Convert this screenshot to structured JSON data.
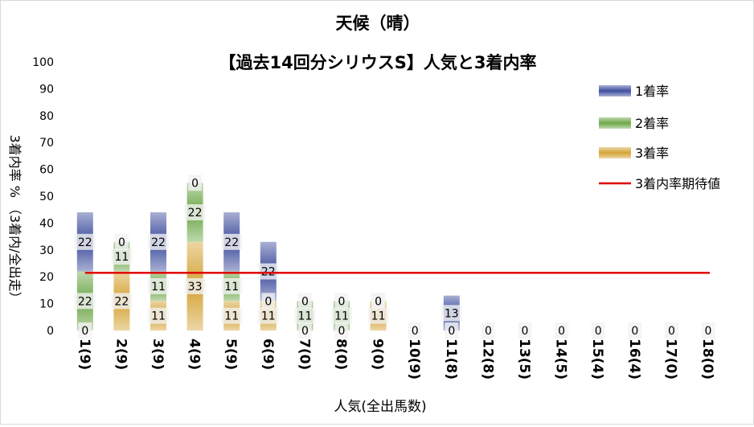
{
  "chart_data": {
    "type": "bar",
    "stacked": true,
    "title": "天候（晴）",
    "subtitle": "【過去14回分シリウスS】人気と3着内率",
    "xlabel": "人気(全出馬数)",
    "ylabel": "3着内率 %  （3着内/全出走）",
    "ylim": [
      0,
      100
    ],
    "yticks": [
      0,
      10,
      20,
      30,
      40,
      50,
      60,
      70,
      80,
      90,
      100
    ],
    "grid": false,
    "legend_position": "top-right",
    "categories": [
      "1(9)",
      "2(9)",
      "3(9)",
      "4(9)",
      "5(9)",
      "6(9)",
      "7(0)",
      "8(0)",
      "9(0)",
      "10(9)",
      "11(8)",
      "12(8)",
      "13(5)",
      "14(5)",
      "15(4)",
      "16(4)",
      "17(0)",
      "18(0)"
    ],
    "series": [
      {
        "name": "3着率",
        "color": "#d4a437",
        "values": [
          0,
          22,
          11,
          33,
          11,
          11,
          0,
          0,
          11,
          0,
          0,
          0,
          0,
          0,
          0,
          0,
          0,
          0
        ]
      },
      {
        "name": "2着率",
        "color": "#6fa84a",
        "values": [
          22,
          11,
          11,
          22,
          11,
          0,
          11,
          11,
          0,
          0,
          0,
          0,
          0,
          0,
          0,
          0,
          0,
          0
        ]
      },
      {
        "name": "1着率",
        "color": "#3f4f9e",
        "values": [
          22,
          0,
          22,
          0,
          22,
          22,
          0,
          0,
          0,
          0,
          13,
          0,
          0,
          0,
          0,
          0,
          0,
          0
        ]
      }
    ],
    "data_labels": {
      "3着率": [
        "0",
        "22",
        "11",
        "33",
        "11",
        "11",
        "0",
        "0",
        "11",
        "0",
        "0",
        "0",
        "0",
        "0",
        "0",
        "0",
        "0",
        "0"
      ],
      "2着率": [
        "22",
        "11",
        "11",
        "22",
        "11",
        "0",
        "11",
        "11",
        "0",
        "",
        "",
        "",
        "",
        "",
        "",
        "",
        "",
        ""
      ],
      "1着率": [
        "22",
        "0",
        "22",
        "0",
        "22",
        "22",
        "0",
        "0",
        "0",
        "",
        "13",
        "",
        "",
        "",
        "",
        "",
        "",
        ""
      ]
    },
    "reference_line": {
      "name": "3着内率期待値",
      "value": 21.5,
      "color": "#e00000"
    },
    "legend": [
      "1着率",
      "2着率",
      "3着率",
      "3着内率期待値"
    ]
  }
}
